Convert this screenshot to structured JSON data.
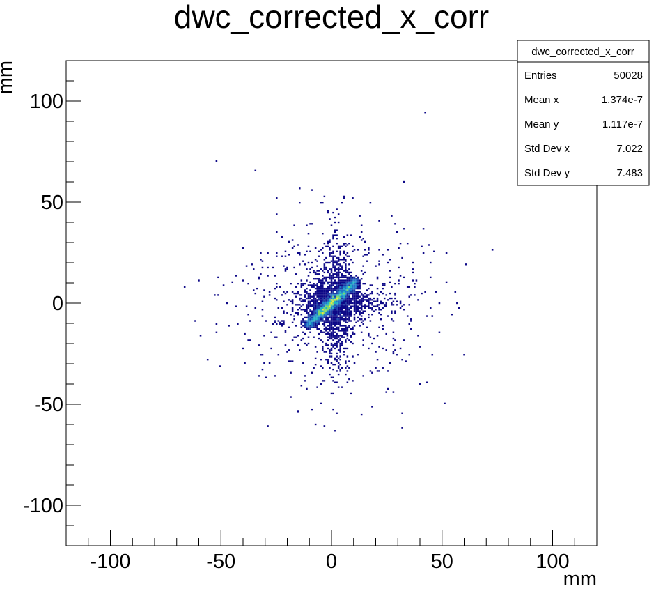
{
  "chart_data": {
    "type": "heatmap",
    "title": "dwc_corrected_x_corr",
    "xlabel": "mm",
    "ylabel": "mm",
    "xlim": [
      -120,
      120
    ],
    "ylim": [
      -120,
      120
    ],
    "x_ticks": [
      -100,
      -50,
      0,
      50,
      100
    ],
    "y_ticks": [
      -100,
      -50,
      0,
      50,
      100
    ],
    "x_tick_labels": [
      "-100",
      "-50",
      "0",
      "50",
      "100"
    ],
    "y_tick_labels": [
      "-100",
      "-50",
      "0",
      "50",
      "100"
    ],
    "grid": false,
    "legend": "none",
    "palette": [
      "#0d0887",
      "#1c3fa8",
      "#1f78c8",
      "#23b0c4",
      "#7cd86e",
      "#f2e33c"
    ],
    "core_band": {
      "x_range": [
        -11,
        11
      ],
      "slope": 1.0,
      "intercept": 0,
      "peak_density_near": [
        0,
        0
      ]
    },
    "halo_sigma_mm": 22,
    "stats_box": {
      "title": "dwc_corrected_x_corr",
      "position": "top-right",
      "rows": [
        {
          "label": "Entries",
          "value": "50028"
        },
        {
          "label": "Mean x",
          "value": "1.374e-7"
        },
        {
          "label": "Mean y",
          "value": "1.117e-7"
        },
        {
          "label": "Std Dev x",
          "value": "7.022"
        },
        {
          "label": "Std Dev y",
          "value": "7.483"
        }
      ]
    }
  }
}
